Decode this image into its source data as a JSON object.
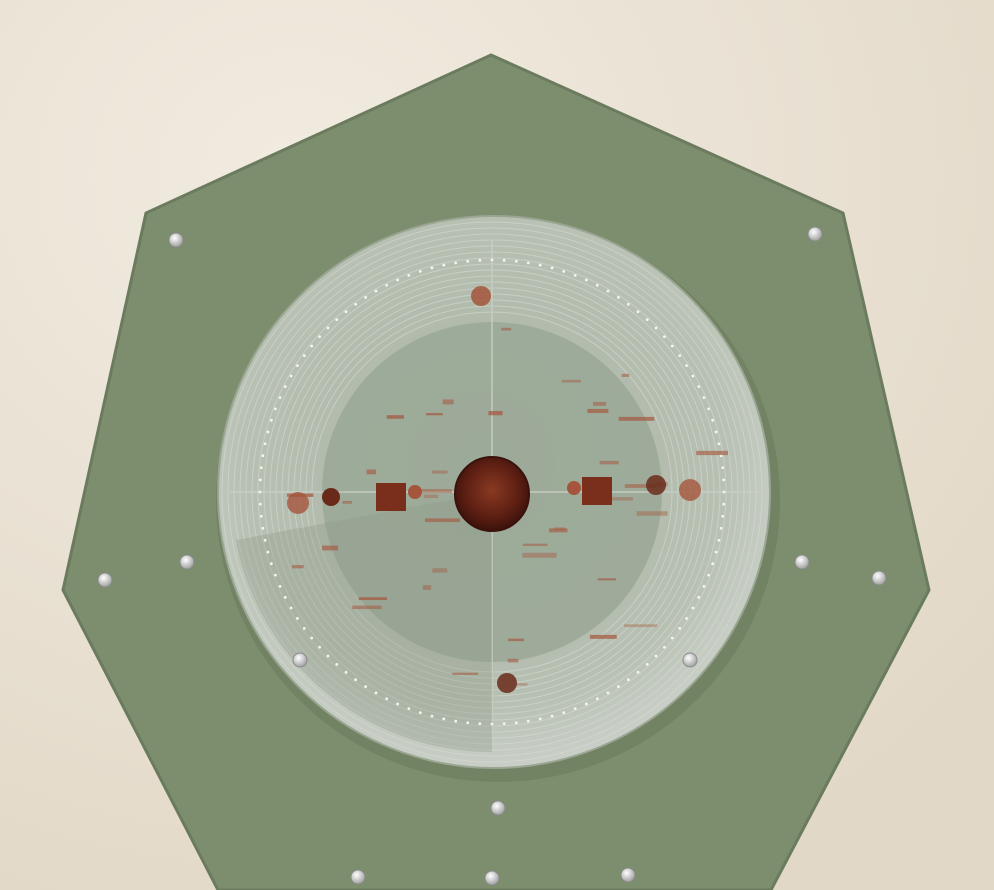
{
  "photo": {
    "subject": "",
    "colors": {
      "wall": "#ece4d6",
      "wall_shadow": "#d6cdbd",
      "plate": "#7d8e6e",
      "plate_edge": "#6b7b5e",
      "recess": "#b9c2b4",
      "inner_disc": "#9aa896",
      "rings": "#d9ddd8",
      "center_core": "#5a1d12",
      "center_glow": "#8a3a22",
      "rust": "#a5553c",
      "screw": "#cfcfcf"
    },
    "counts": {
      "screws": 12,
      "ring_lines": 16,
      "outer_dots": 120,
      "rust_marks": 40
    }
  }
}
